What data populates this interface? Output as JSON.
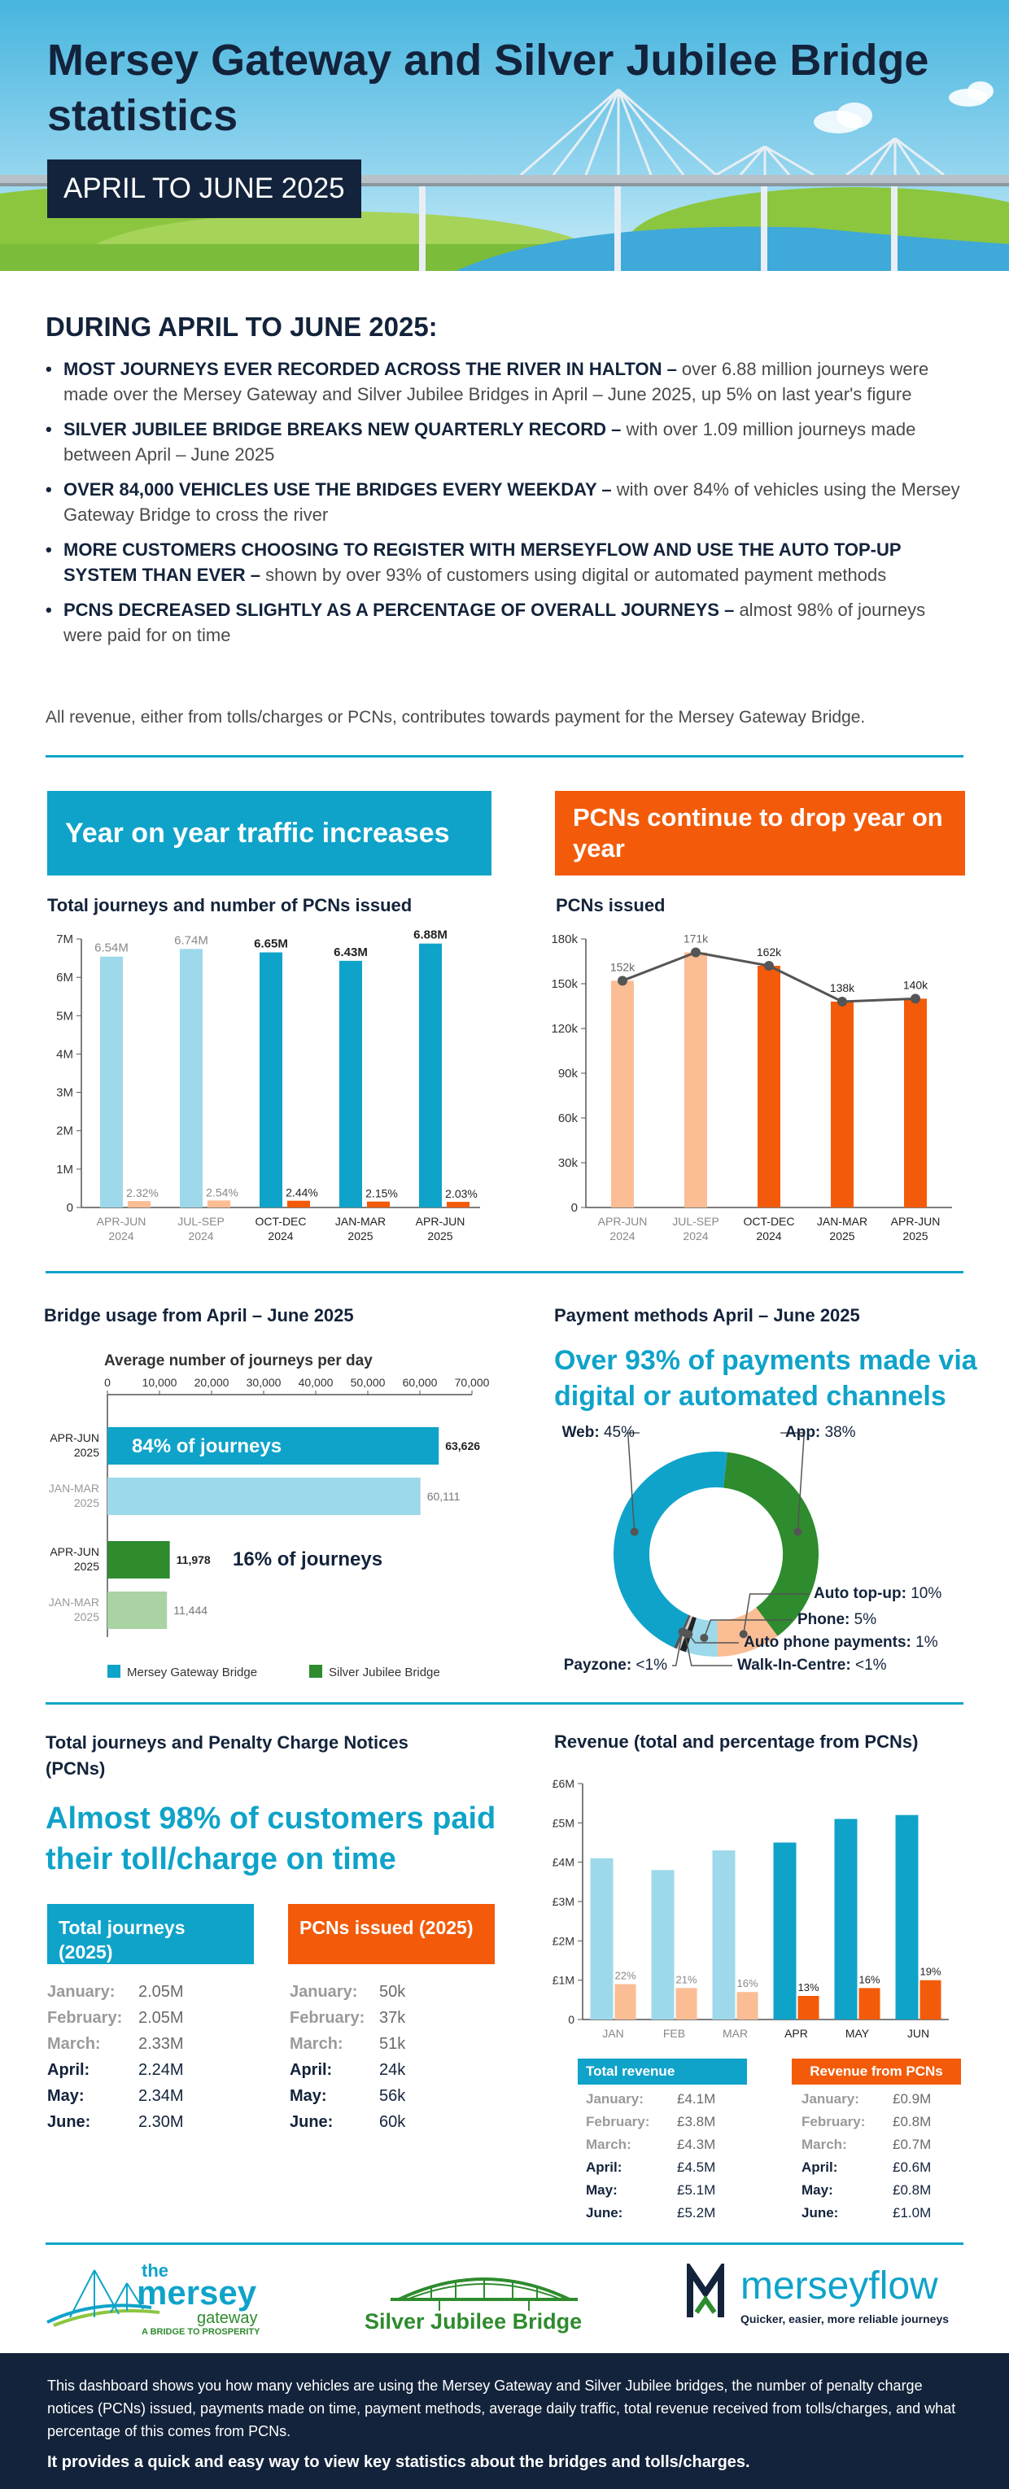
{
  "header": {
    "title": "Mersey Gateway and Silver Jubilee Bridge statistics",
    "period": "APRIL TO JUNE 2025"
  },
  "summary": {
    "title": "DURING APRIL TO JUNE 2025:",
    "bullets": [
      {
        "bold": "MOST JOURNEYS EVER RECORDED ACROSS THE RIVER IN HALTON –",
        "text": " over 6.88 million journeys were made over the Mersey Gateway and Silver Jubilee Bridges in April – June 2025, up 5% on last year's figure"
      },
      {
        "bold": "SILVER JUBILEE BRIDGE BREAKS NEW QUARTERLY RECORD –",
        "text": " with over 1.09 million journeys made between April – June 2025"
      },
      {
        "bold": "OVER 84,000 VEHICLES USE THE BRIDGES EVERY WEEKDAY –",
        "text": " with over 84% of vehicles using the Mersey Gateway Bridge to cross the river"
      },
      {
        "bold": "MORE CUSTOMERS CHOOSING TO REGISTER WITH MERSEYFLOW AND USE THE AUTO TOP-UP SYSTEM THAN EVER –",
        "text": " shown by over 93% of customers using digital or automated payment methods"
      },
      {
        "bold": "PCNS DECREASED SLIGHTLY AS A PERCENTAGE OF OVERALL JOURNEYS –",
        "text": " almost 98% of journeys were paid for on time"
      }
    ],
    "note": "All revenue, either from tolls/charges or PCNs, contributes towards payment for the Mersey Gateway Bridge."
  },
  "banners": {
    "traffic": "Year on year traffic increases",
    "pcns": "PCNs continue to drop year on year"
  },
  "colors": {
    "navy": "#13233b",
    "blue": "#0fa3c9",
    "light_blue": "#9dd9ea",
    "orange": "#f35b0a",
    "light_orange": "#fbbd94",
    "green": "#2e8b2e",
    "light_green": "#a9d3a3"
  },
  "chart_data": [
    {
      "id": "journeys",
      "type": "bar",
      "title": "Total journeys and number of PCNs issued",
      "categories": [
        [
          "APR-JUN",
          "2024"
        ],
        [
          "JUL-SEP",
          "2024"
        ],
        [
          "OCT-DEC",
          "2024"
        ],
        [
          "JAN-MAR",
          "2025"
        ],
        [
          "APR-JUN",
          "2025"
        ]
      ],
      "series": [
        {
          "name": "Total journeys (M)",
          "values": [
            6.54,
            6.74,
            6.65,
            6.43,
            6.88
          ],
          "labels": [
            "6.54M",
            "6.74M",
            "6.65M",
            "6.43M",
            "6.88M"
          ]
        },
        {
          "name": "PCNs as % of journeys",
          "values": [
            2.32,
            2.54,
            2.44,
            2.15,
            2.03
          ],
          "labels": [
            "2.32%",
            "2.54%",
            "2.44%",
            "2.15%",
            "2.03%"
          ]
        }
      ],
      "yticks": [
        "0",
        "1M",
        "2M",
        "3M",
        "4M",
        "5M",
        "6M",
        "7M"
      ],
      "ylim": [
        0,
        7
      ]
    },
    {
      "id": "pcns",
      "type": "bar",
      "title": "PCNs issued",
      "categories": [
        [
          "APR-JUN",
          "2024"
        ],
        [
          "JUL-SEP",
          "2024"
        ],
        [
          "OCT-DEC",
          "2024"
        ],
        [
          "JAN-MAR",
          "2025"
        ],
        [
          "APR-JUN",
          "2025"
        ]
      ],
      "values": [
        152,
        171,
        162,
        138,
        140
      ],
      "labels": [
        "152k",
        "171k",
        "162k",
        "138k",
        "140k"
      ],
      "yticks": [
        "0",
        "30k",
        "60k",
        "90k",
        "120k",
        "150k",
        "180k"
      ],
      "ylim": [
        0,
        180
      ]
    },
    {
      "id": "usage",
      "type": "bar",
      "orientation": "horizontal",
      "title": "Bridge usage from April – June 2025",
      "subtitle": "Average number of journeys per day",
      "xticks": [
        "0",
        "10,000",
        "20,000",
        "30,000",
        "40,000",
        "50,000",
        "60,000",
        "70,000"
      ],
      "xlim": [
        0,
        70000
      ],
      "rows": [
        {
          "label": [
            "APR-JUN",
            "2025"
          ],
          "value": 63626,
          "value_label": "63,626",
          "bridge": "Mersey Gateway Bridge",
          "current": true
        },
        {
          "label": [
            "JAN-MAR",
            "2025"
          ],
          "value": 60111,
          "value_label": "60,111",
          "bridge": "Mersey Gateway Bridge",
          "current": false
        },
        {
          "label": [
            "APR-JUN",
            "2025"
          ],
          "value": 11978,
          "value_label": "11,978",
          "bridge": "Silver Jubilee Bridge",
          "current": true
        },
        {
          "label": [
            "JAN-MAR",
            "2025"
          ],
          "value": 11444,
          "value_label": "11,444",
          "bridge": "Silver Jubilee Bridge",
          "current": false
        }
      ],
      "annotations": [
        "84% of journeys",
        "16% of journeys"
      ],
      "legend": [
        "Mersey Gateway Bridge",
        "Silver Jubilee Bridge"
      ]
    },
    {
      "id": "payments",
      "type": "pie",
      "title": "Payment methods April – June 2025",
      "headline": "Over 93% of payments made via digital or automated channels",
      "slices": [
        {
          "name": "App",
          "value": 38,
          "label": "App: 38%"
        },
        {
          "name": "Auto top-up",
          "value": 10,
          "label": "Auto top-up: 10%"
        },
        {
          "name": "Phone",
          "value": 5,
          "label": "Phone: 5%"
        },
        {
          "name": "Auto phone payments",
          "value": 1,
          "label": "Auto phone payments: 1%"
        },
        {
          "name": "Walk-In-Centre",
          "value": 0.5,
          "label": "Walk-In-Centre: <1%"
        },
        {
          "name": "Payzone",
          "value": 0.5,
          "label": "Payzone: <1%"
        },
        {
          "name": "Web",
          "value": 45,
          "label": "Web: 45%"
        }
      ]
    },
    {
      "id": "revenue",
      "type": "bar",
      "title": "Revenue (total and percentage from PCNs)",
      "categories": [
        "JAN",
        "FEB",
        "MAR",
        "APR",
        "MAY",
        "JUN"
      ],
      "series": [
        {
          "name": "Total revenue (£M)",
          "values": [
            4.1,
            3.8,
            4.3,
            4.5,
            5.1,
            5.2
          ]
        },
        {
          "name": "Revenue from PCNs (£M)",
          "values": [
            0.9,
            0.8,
            0.7,
            0.6,
            0.8,
            1.0
          ],
          "labels": [
            "22%",
            "21%",
            "16%",
            "13%",
            "16%",
            "19%"
          ]
        }
      ],
      "yticks": [
        "0",
        "£1M",
        "£2M",
        "£3M",
        "£4M",
        "£5M",
        "£6M"
      ],
      "ylim": [
        0,
        6
      ]
    }
  ],
  "journeys_section": {
    "title": "Total journeys and Penalty Charge Notices (PCNs)",
    "headline": "Almost 98% of customers paid their toll/charge on time",
    "journeys_head": "Total journeys (2025)",
    "pcns_head": "PCNs issued (2025)",
    "journeys": [
      {
        "month": "January:",
        "value": "2.05M"
      },
      {
        "month": "February:",
        "value": "2.05M"
      },
      {
        "month": "March:",
        "value": "2.33M"
      },
      {
        "month": "April:",
        "value": "2.24M"
      },
      {
        "month": "May:",
        "value": "2.34M"
      },
      {
        "month": "June:",
        "value": "2.30M"
      }
    ],
    "pcns": [
      {
        "month": "January:",
        "value": "50k"
      },
      {
        "month": "February:",
        "value": "37k"
      },
      {
        "month": "March:",
        "value": "51k"
      },
      {
        "month": "April:",
        "value": "24k"
      },
      {
        "month": "May:",
        "value": "56k"
      },
      {
        "month": "June:",
        "value": "60k"
      }
    ]
  },
  "revenue_tables": {
    "total_head": "Total revenue",
    "pcn_head": "Revenue from PCNs",
    "total": [
      {
        "month": "January:",
        "value": "£4.1M"
      },
      {
        "month": "February:",
        "value": "£3.8M"
      },
      {
        "month": "March:",
        "value": "£4.3M"
      },
      {
        "month": "April:",
        "value": "£4.5M"
      },
      {
        "month": "May:",
        "value": "£5.1M"
      },
      {
        "month": "June:",
        "value": "£5.2M"
      }
    ],
    "pcn": [
      {
        "month": "January:",
        "value": "£0.9M"
      },
      {
        "month": "February:",
        "value": "£0.8M"
      },
      {
        "month": "March:",
        "value": "£0.7M"
      },
      {
        "month": "April:",
        "value": "£0.6M"
      },
      {
        "month": "May:",
        "value": "£0.8M"
      },
      {
        "month": "June:",
        "value": "£1.0M"
      }
    ]
  },
  "logos": {
    "mersey_gateway": {
      "the": "the",
      "mersey": "mersey",
      "gateway": "gateway",
      "tagline": "A BRIDGE TO PROSPERITY"
    },
    "silver_jubilee": "Silver Jubilee Bridge",
    "merseyflow": {
      "name": "merseyflow",
      "tagline": "Quicker, easier, more reliable journeys"
    }
  },
  "footer": {
    "text": "This dashboard shows you how many vehicles are using the Mersey Gateway and Silver Jubilee bridges, the number of penalty charge notices (PCNs) issued, payments made on time, payment methods, average daily traffic, total revenue received from tolls/charges, and what percentage of this comes from PCNs.",
    "strong": "It provides a quick and easy way to view key statistics about the bridges and tolls/charges."
  }
}
